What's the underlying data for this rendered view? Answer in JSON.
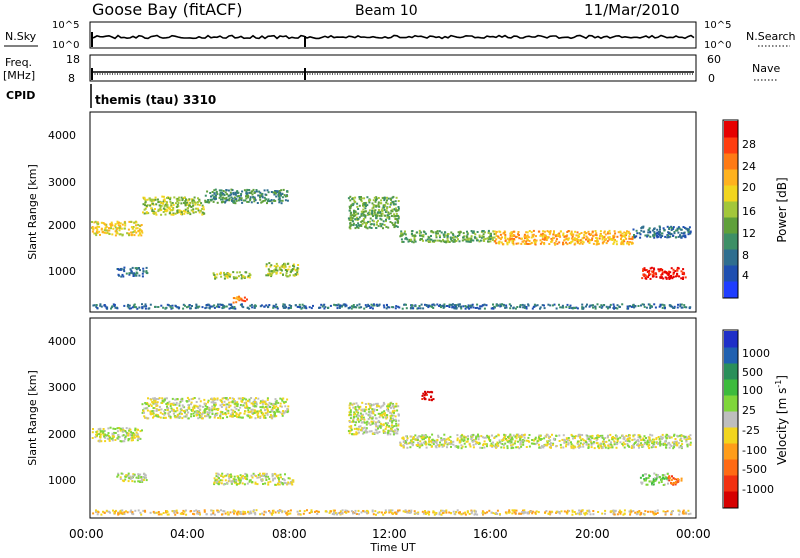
{
  "header": {
    "station": "Goose Bay (fitACF)",
    "beam": "Beam 10",
    "date": "11/Mar/2010"
  },
  "strips": {
    "nsky_label": "N.Sky",
    "nsky_ticks": [
      "10^5",
      "10^0"
    ],
    "nsearch_label": "N.Search",
    "nsearch_ticks": [
      "10^5",
      "10^0"
    ],
    "freq_label_1": "Freq.",
    "freq_label_2": "[MHz]",
    "freq_ticks": [
      "18",
      "8"
    ],
    "nave_label": "Nave",
    "nave_ticks": [
      "60",
      "0"
    ],
    "cpid_label": "CPID",
    "cpid_value": "themis (tau) 3310"
  },
  "chart_data": [
    {
      "type": "heatmap",
      "name": "power",
      "ylabel": "Slant Range [km]",
      "yticks": [
        "1000",
        "2000",
        "3000",
        "4000"
      ],
      "ylim": [
        180,
        4500
      ],
      "xlim": [
        0,
        24
      ],
      "colorbar": {
        "label": "Power [dB]",
        "ticks": [
          "4",
          "8",
          "12",
          "16",
          "20",
          "24",
          "28"
        ],
        "colors": [
          "#1f3dff",
          "#1f4fb0",
          "#2f6e8f",
          "#3d8f66",
          "#5fa03a",
          "#a3c73a",
          "#f2d51e",
          "#ffb21e",
          "#ff7a14",
          "#ff3d0f",
          "#e60000"
        ]
      },
      "bands": [
        {
          "x": [
            0.0,
            2.0
          ],
          "y": [
            1850,
            2150
          ],
          "level": 6
        },
        {
          "x": [
            2.0,
            4.5
          ],
          "y": [
            2300,
            2700
          ],
          "level": 5
        },
        {
          "x": [
            4.5,
            7.8
          ],
          "y": [
            2550,
            2850
          ],
          "level": 3
        },
        {
          "x": [
            1.0,
            2.2
          ],
          "y": [
            950,
            1150
          ],
          "level": 2
        },
        {
          "x": [
            4.8,
            6.3
          ],
          "y": [
            900,
            1050
          ],
          "level": 5
        },
        {
          "x": [
            6.9,
            8.2
          ],
          "y": [
            950,
            1250
          ],
          "level": 5
        },
        {
          "x": [
            5.6,
            6.2
          ],
          "y": [
            380,
            520
          ],
          "level": 8
        },
        {
          "x": [
            10.2,
            12.2
          ],
          "y": [
            2000,
            2700
          ],
          "level": 4
        },
        {
          "x": [
            12.2,
            16.0
          ],
          "y": [
            1700,
            1950
          ],
          "level": 4
        },
        {
          "x": [
            16.0,
            21.5
          ],
          "y": [
            1650,
            1950
          ],
          "level": 7
        },
        {
          "x": [
            21.5,
            23.8
          ],
          "y": [
            1800,
            2050
          ],
          "level": 2
        },
        {
          "x": [
            21.8,
            23.6
          ],
          "y": [
            900,
            1150
          ],
          "level": 10
        },
        {
          "x": [
            0.0,
            23.8
          ],
          "y": [
            250,
            350
          ],
          "level": 2
        }
      ]
    },
    {
      "type": "heatmap",
      "name": "velocity",
      "ylabel": "Slant Range [km]",
      "yticks": [
        "1000",
        "2000",
        "3000",
        "4000"
      ],
      "ylim": [
        180,
        4500
      ],
      "xlim": [
        0,
        24
      ],
      "xticks": [
        "00:00",
        "04:00",
        "08:00",
        "12:00",
        "16:00",
        "20:00",
        "00:00"
      ],
      "xlabel": "Time UT",
      "colorbar": {
        "label": "Velocity [m s^-1]",
        "ticks": [
          "1000",
          "500",
          "100",
          "25",
          "-25",
          "-100",
          "-500",
          "-1000"
        ],
        "colors": [
          "#1f2fc8",
          "#2060b0",
          "#2a8f5a",
          "#3dbb3d",
          "#7fd63a",
          "#bebebe",
          "#f2d51e",
          "#ff9d1a",
          "#ff6a14",
          "#f23010",
          "#d60000"
        ]
      },
      "bands": [
        {
          "x": [
            0.0,
            2.0
          ],
          "y": [
            1850,
            2150
          ],
          "level": 5
        },
        {
          "x": [
            2.0,
            7.8
          ],
          "y": [
            2350,
            2800
          ],
          "level": 5
        },
        {
          "x": [
            1.0,
            2.2
          ],
          "y": [
            950,
            1150
          ],
          "level": 5
        },
        {
          "x": [
            4.8,
            8.0
          ],
          "y": [
            900,
            1150
          ],
          "level": 5
        },
        {
          "x": [
            10.2,
            12.2
          ],
          "y": [
            2000,
            2700
          ],
          "level": 5
        },
        {
          "x": [
            12.2,
            23.8
          ],
          "y": [
            1700,
            2000
          ],
          "level": 5
        },
        {
          "x": [
            13.1,
            13.6
          ],
          "y": [
            2750,
            2950
          ],
          "level": 10
        },
        {
          "x": [
            21.8,
            22.9
          ],
          "y": [
            900,
            1150
          ],
          "level": 4
        },
        {
          "x": [
            22.9,
            23.5
          ],
          "y": [
            900,
            1100
          ],
          "level": 8
        },
        {
          "x": [
            0.0,
            23.8
          ],
          "y": [
            250,
            350
          ],
          "level": 6
        }
      ]
    }
  ]
}
